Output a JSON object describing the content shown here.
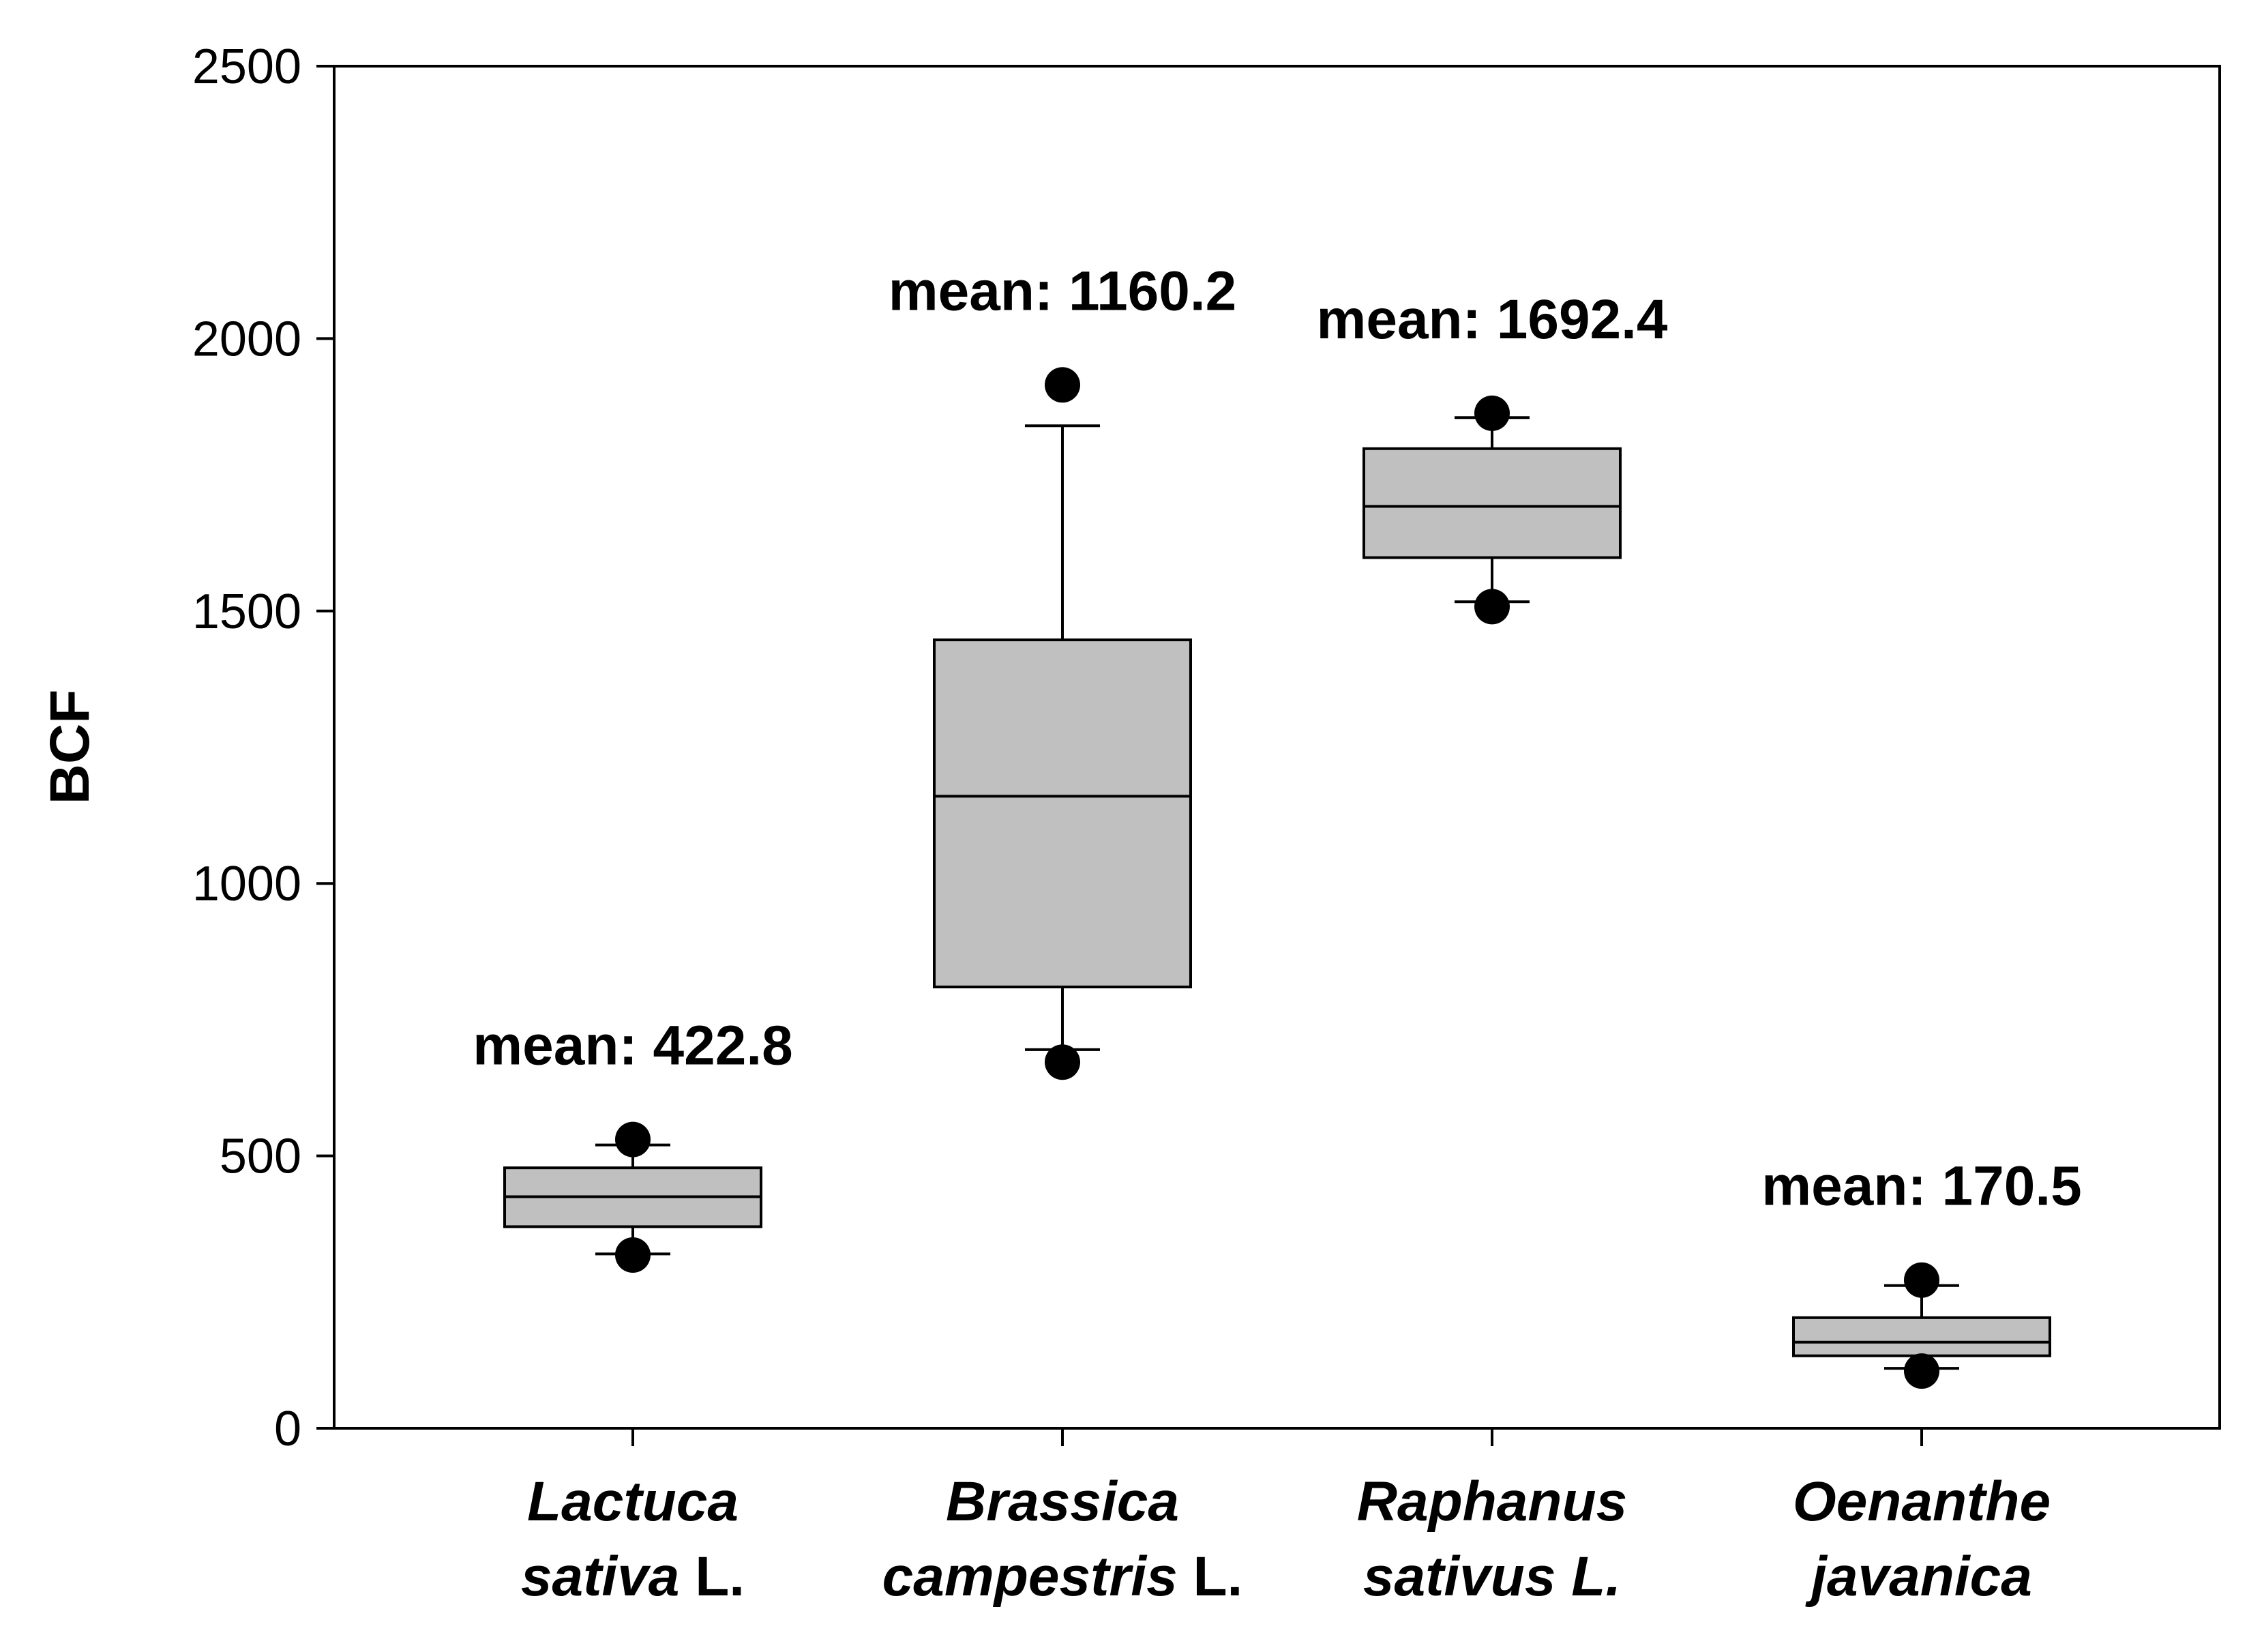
{
  "chart_data": {
    "type": "box",
    "ylabel": "BCF",
    "ylim": [
      0,
      2500
    ],
    "yticks": [
      "0",
      "500",
      "1000",
      "1500",
      "2000",
      "2500"
    ],
    "grid": false,
    "categories": [
      {
        "italic": "Lactuca",
        "line2_italic": "sativa",
        "line2_plain": " L."
      },
      {
        "italic": "Brassica",
        "line2_italic": "campestris",
        "line2_plain": " L."
      },
      {
        "italic": "Raphanus",
        "line2_italic": "sativus L.",
        "line2_plain": ""
      },
      {
        "italic": "Oenanthe",
        "line2_italic": "javanica",
        "line2_plain": ""
      }
    ],
    "boxes": [
      {
        "q1": 370,
        "median": 425,
        "q3": 478,
        "whisker_low": 320,
        "whisker_high": 520,
        "outliers": [
          530,
          318
        ],
        "mean_label": "mean: 422.8"
      },
      {
        "q1": 810,
        "median": 1160,
        "q3": 1447,
        "whisker_low": 695,
        "whisker_high": 1840,
        "outliers": [
          1915,
          672
        ],
        "mean_label": "mean: 1160.2"
      },
      {
        "q1": 1598,
        "median": 1692,
        "q3": 1798,
        "whisker_low": 1517,
        "whisker_high": 1855,
        "outliers": [
          1863,
          1508
        ],
        "mean_label": "mean: 1692.4"
      },
      {
        "q1": 133,
        "median": 158,
        "q3": 203,
        "whisker_low": 110,
        "whisker_high": 262,
        "outliers": [
          272,
          105
        ],
        "mean_label": "mean: 170.5"
      }
    ],
    "box_color": "#c0c0c0"
  }
}
